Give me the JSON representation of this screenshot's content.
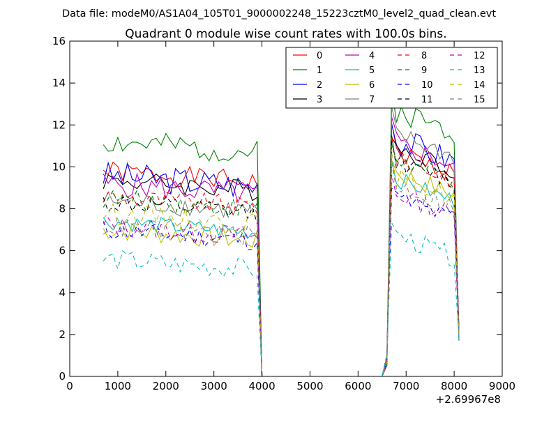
{
  "header": {
    "suptitle": "Data file: modeM0/AS1A04_105T01_9000002248_15223cztM0_level2_quad_clean.evt"
  },
  "chart_data": {
    "type": "line",
    "title": "Quadrant 0 module wise count rates with 100.0s bins.",
    "xlabel": "",
    "ylabel": "",
    "x_offset_label": "+2.69967e8",
    "xlim": [
      0,
      9000
    ],
    "ylim": [
      0,
      16
    ],
    "xticks": [
      "0",
      "1000",
      "2000",
      "3000",
      "4000",
      "5000",
      "6000",
      "7000",
      "8000",
      "9000"
    ],
    "yticks": [
      "0",
      "2",
      "4",
      "6",
      "8",
      "10",
      "12",
      "14",
      "16"
    ],
    "grid": false,
    "legend_position": "top-right",
    "x": [
      700,
      800,
      900,
      1000,
      1100,
      1200,
      1300,
      1400,
      1500,
      1600,
      1700,
      1800,
      1900,
      2000,
      2100,
      2200,
      2300,
      2400,
      2500,
      2600,
      2700,
      2800,
      2900,
      3000,
      3100,
      3200,
      3300,
      3400,
      3500,
      3600,
      3700,
      3800,
      3900,
      4000,
      4100,
      4200,
      4300,
      4400,
      4500,
      4600,
      4700,
      4800,
      4900,
      5000,
      5100,
      5200,
      5300,
      5400,
      5500,
      5600,
      5700,
      5800,
      5900,
      6000,
      6100,
      6200,
      6300,
      6400,
      6500,
      6600,
      6700,
      6800,
      6900,
      7000,
      7100,
      7200,
      7300,
      7400,
      7500,
      7600,
      7700,
      7800,
      7900,
      8000,
      8100
    ],
    "active_segments": [
      {
        "start": 700,
        "end": 3900,
        "drop_x": 4000
      },
      {
        "start": 6700,
        "end": 8100,
        "rise_x": 6600,
        "rise_y": 0.8,
        "drop_y": 2.0
      }
    ],
    "series": [
      {
        "name": "0",
        "color": "#ff0000",
        "dash": "solid",
        "base1": 9.8,
        "base2": 10.8,
        "amp": 0.5,
        "seed": 1
      },
      {
        "name": "1",
        "color": "#008000",
        "dash": "solid",
        "base1": 11.2,
        "base2": 12.8,
        "amp": 0.6,
        "seed": 2
      },
      {
        "name": "2",
        "color": "#0000ff",
        "dash": "solid",
        "base1": 9.6,
        "base2": 11.4,
        "amp": 0.7,
        "seed": 3
      },
      {
        "name": "3",
        "color": "#000000",
        "dash": "solid",
        "base1": 9.4,
        "base2": 11.0,
        "amp": 0.5,
        "seed": 4
      },
      {
        "name": "4",
        "color": "#bf00bf",
        "dash": "solid",
        "base1": 9.2,
        "base2": 11.2,
        "amp": 0.6,
        "seed": 5
      },
      {
        "name": "5",
        "color": "#00bfbf",
        "dash": "solid",
        "base1": 7.4,
        "base2": 9.5,
        "amp": 0.4,
        "seed": 6
      },
      {
        "name": "6",
        "color": "#bfbf00",
        "dash": "solid",
        "base1": 7.0,
        "base2": 9.8,
        "amp": 0.5,
        "seed": 7
      },
      {
        "name": "7",
        "color": "#808080",
        "dash": "solid",
        "base1": 8.4,
        "base2": 11.6,
        "amp": 0.5,
        "seed": 8
      },
      {
        "name": "8",
        "color": "#ff0000",
        "dash": "dashed",
        "base1": 8.6,
        "base2": 10.5,
        "amp": 0.5,
        "seed": 9
      },
      {
        "name": "9",
        "color": "#008000",
        "dash": "dashed",
        "base1": 8.5,
        "base2": 10.4,
        "amp": 0.5,
        "seed": 10
      },
      {
        "name": "10",
        "color": "#0000ff",
        "dash": "dashed",
        "base1": 7.0,
        "base2": 8.6,
        "amp": 0.5,
        "seed": 11
      },
      {
        "name": "11",
        "color": "#000000",
        "dash": "dashed",
        "base1": 8.3,
        "base2": 10.4,
        "amp": 0.5,
        "seed": 12
      },
      {
        "name": "12",
        "color": "#bf00bf",
        "dash": "dashed",
        "base1": 7.2,
        "base2": 8.8,
        "amp": 0.5,
        "seed": 13
      },
      {
        "name": "13",
        "color": "#00bfbf",
        "dash": "dashed",
        "base1": 5.6,
        "base2": 6.8,
        "amp": 0.5,
        "seed": 14
      },
      {
        "name": "14",
        "color": "#bfbf00",
        "dash": "dashed",
        "base1": 7.8,
        "base2": 9.6,
        "amp": 0.5,
        "seed": 15
      },
      {
        "name": "15",
        "color": "#808080",
        "dash": "dashed",
        "base1": 7.2,
        "base2": 9.2,
        "amp": 0.5,
        "seed": 16
      }
    ]
  }
}
